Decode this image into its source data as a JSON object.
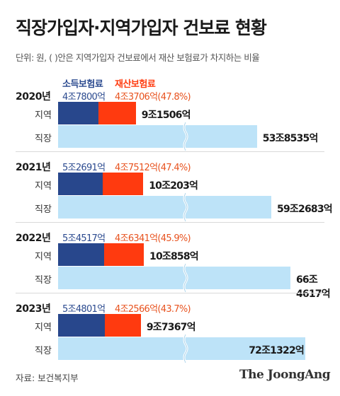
{
  "title": "직장가입자·지역가입자 건보료 현황",
  "subtitle": "단위: 원, ( )안은 지역가입자 건보료에서 재산 보험료가 차지하는 비율",
  "source": "자료: 보건복지부",
  "logo": "The JoongAng",
  "chart_data": {
    "type": "bar",
    "unit": "원",
    "legend": [
      "소득보험료",
      "재산보험료"
    ],
    "colors": {
      "income": "#28478c",
      "property": "#ff3a0f",
      "workplace": "#bde3f8"
    },
    "axis_break": true,
    "years": [
      {
        "year": "2020년",
        "income_label": "4조7800억",
        "property_label": "4조3706억(47.8%)",
        "regional_label": "9조1506억",
        "workplace_label": "53조8535억",
        "income_value": 47800,
        "property_value": 43706,
        "property_share": 47.8,
        "regional_value": 91506,
        "workplace_value": 538535,
        "row_labels": [
          "지역",
          "직장"
        ]
      },
      {
        "year": "2021년",
        "income_label": "5조2691억",
        "property_label": "4조7512억(47.4%)",
        "regional_label": "10조203억",
        "workplace_label": "59조2683억",
        "income_value": 52691,
        "property_value": 47512,
        "property_share": 47.4,
        "regional_value": 100203,
        "workplace_value": 592683,
        "row_labels": [
          "지역",
          "직장"
        ]
      },
      {
        "year": "2022년",
        "income_label": "5조4517억",
        "property_label": "4조6341억(45.9%)",
        "regional_label": "10조858억",
        "workplace_label": "66조4617억",
        "income_value": 54517,
        "property_value": 46341,
        "property_share": 45.9,
        "regional_value": 100858,
        "workplace_value": 664617,
        "row_labels": [
          "지역",
          "직장"
        ]
      },
      {
        "year": "2023년",
        "income_label": "5조4801억",
        "property_label": "4조2566억(43.7%)",
        "regional_label": "9조7367억",
        "workplace_label": "72조1322억",
        "income_value": 54801,
        "property_value": 42566,
        "property_share": 43.7,
        "regional_value": 97367,
        "workplace_value": 721322,
        "row_labels": [
          "지역",
          "직장"
        ]
      }
    ]
  }
}
